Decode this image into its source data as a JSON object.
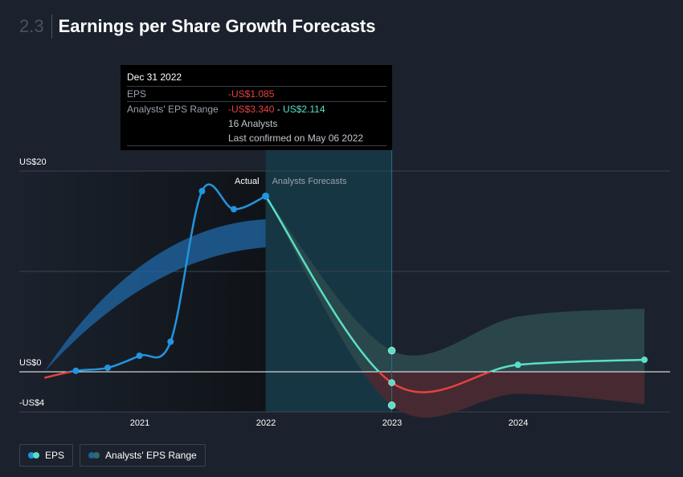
{
  "header": {
    "section_number": "2.3",
    "title": "Earnings per Share Growth Forecasts"
  },
  "tooltip": {
    "date": "Dec 31 2022",
    "eps_label": "EPS",
    "eps_value": "-US$1.085",
    "range_label": "Analysts' EPS Range",
    "range_low": "-US$3.340",
    "range_sep": " - ",
    "range_high": "US$2.114",
    "analysts": "16 Analysts",
    "confirmed": "Last confirmed on May 06 2022"
  },
  "legend": {
    "eps_label": "EPS",
    "range_label": "Analysts' EPS Range"
  },
  "colors": {
    "eps_line": "#2394df",
    "forecast_line": "#58e0c7",
    "negative": "#e64141",
    "range_past": "#1f5f99",
    "range_future": "#2c4a4e",
    "range_negative": "#4a2a31"
  },
  "chart_data": {
    "type": "line",
    "xlabel": "",
    "ylabel": "",
    "y_ticks": [
      "US$20",
      "US$0",
      "-US$4"
    ],
    "x_ticks": [
      "2021",
      "2022",
      "2023",
      "2024"
    ],
    "section_labels": {
      "actual": "Actual",
      "forecast": "Analysts Forecasts"
    },
    "ylim": [
      -4,
      20
    ],
    "grid": true,
    "legend_position": "bottom-left",
    "series": [
      {
        "name": "EPS",
        "points": [
          [
            "2020-03-31",
            -0.6
          ],
          [
            "2020-06-30",
            0.1
          ],
          [
            "2020-09-30",
            0.4
          ],
          [
            "2020-12-31",
            1.6
          ],
          [
            "2021-03-31",
            3.0
          ],
          [
            "2021-06-30",
            18.0
          ],
          [
            "2021-09-30",
            16.2
          ],
          [
            "2021-12-31",
            17.5
          ]
        ]
      },
      {
        "name": "Forecast EPS",
        "points": [
          [
            "2021-12-31",
            17.5
          ],
          [
            "2022-12-31",
            -1.085
          ],
          [
            "2023-12-31",
            0.7
          ],
          [
            "2024-12-31",
            1.2
          ]
        ]
      }
    ],
    "range_past": {
      "x": [
        "2020-03-31",
        "2021-12-31"
      ],
      "low": [
        0,
        12.4
      ],
      "high": [
        0,
        15.2
      ]
    },
    "range_future": {
      "x": [
        "2021-12-31",
        "2022-12-31",
        "2023-12-31",
        "2024-12-31"
      ],
      "low": [
        17.5,
        -3.34,
        -2.2,
        -3.2
      ],
      "high": [
        17.5,
        2.114,
        5.5,
        6.3
      ]
    },
    "highlight_date": "2022-12-31"
  }
}
